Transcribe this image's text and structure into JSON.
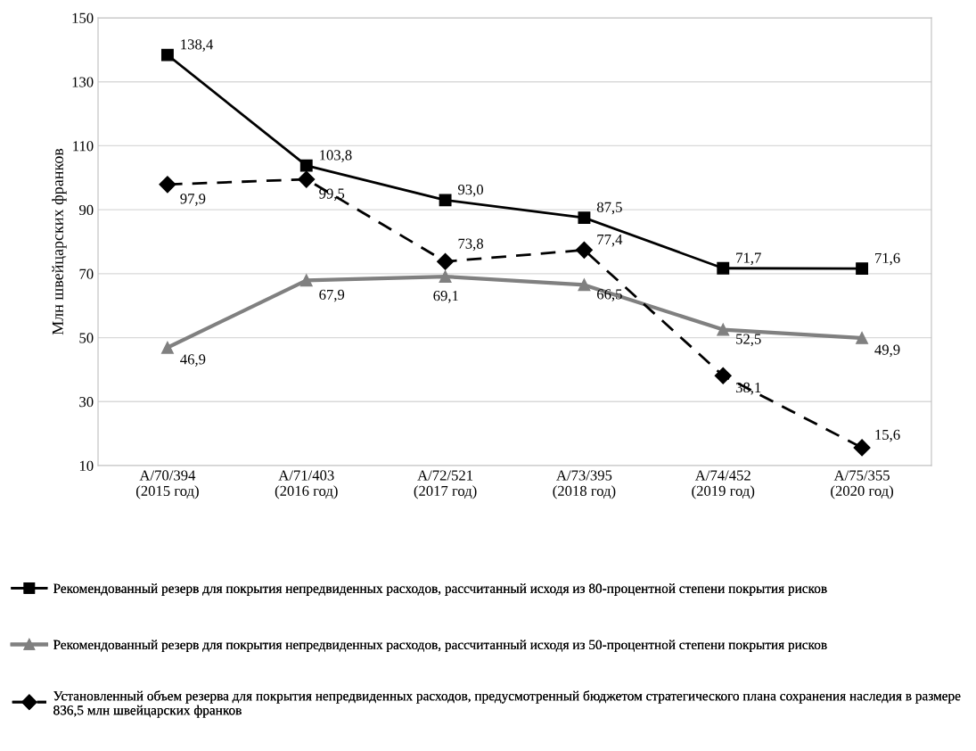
{
  "chart_data": {
    "type": "line",
    "ylabel": "Млн швейцарских франков",
    "categories": [
      "A/70/394\n(2015 год)",
      "A/71/403\n(2016 год)",
      "A/72/521\n(2017 год)",
      "A/73/395\n(2018 год)",
      "A/74/452\n(2019 год)",
      "A/75/355\n(2020 год)"
    ],
    "series": [
      {
        "name": "Рекомендованный резерв для покрытия непредвиденных расходов, рассчитанный исходя из 80-процентной степени покрытия рисков",
        "color": "#000000",
        "marker": "square",
        "line_style": "solid",
        "values": [
          138.4,
          103.8,
          93.0,
          87.5,
          71.7,
          71.6
        ],
        "value_labels": [
          "138,4",
          "103,8",
          "93,0",
          "87,5",
          "71,7",
          "71,6"
        ]
      },
      {
        "name": "Рекомендованный резерв для покрытия непредвиденных расходов, рассчитанный исходя из 50-процентной степени покрытия рисков",
        "color": "#808080",
        "marker": "triangle",
        "line_style": "solid",
        "values": [
          46.9,
          67.9,
          69.1,
          66.5,
          52.5,
          49.9
        ],
        "value_labels": [
          "46,9",
          "67,9",
          "69,1",
          "66,5",
          "52,5",
          "49,9"
        ]
      },
      {
        "name": "Установленный объем резерва для покрытия непредвиденных расходов, предусмотренный бюджетом стратегического плана сохранения наследия в размере 836,5 млн швейцарских франков",
        "color": "#000000",
        "marker": "diamond",
        "line_style": "dashed",
        "values": [
          97.9,
          99.5,
          73.8,
          77.4,
          38.1,
          15.6
        ],
        "value_labels": [
          "97,9",
          "99,5",
          "73,8",
          "77,4",
          "38,1",
          "15,6"
        ]
      }
    ],
    "ylim": [
      10,
      150
    ],
    "yticks": [
      10,
      30,
      50,
      70,
      90,
      110,
      130,
      150
    ],
    "grid": "y",
    "legend": "bottom"
  }
}
